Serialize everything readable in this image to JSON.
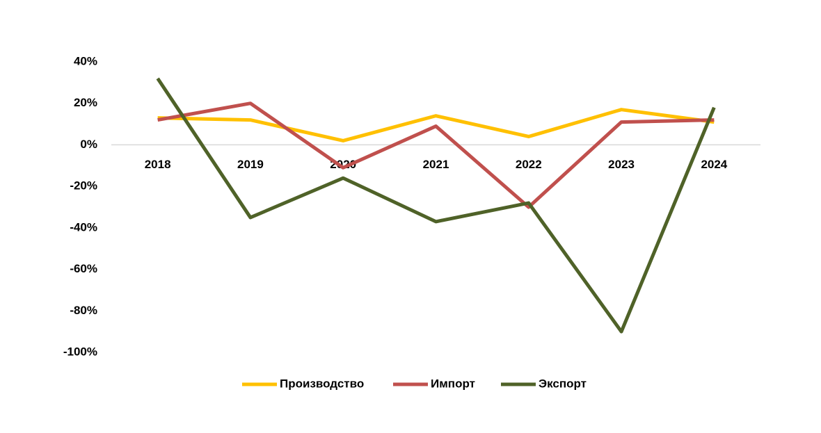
{
  "chart_data": {
    "type": "line",
    "categories": [
      "2018",
      "2019",
      "2020",
      "2021",
      "2022",
      "2023",
      "2024"
    ],
    "series": [
      {
        "name": "Производство",
        "color": "#FFC000",
        "values": [
          13,
          12,
          2,
          14,
          4,
          17,
          11
        ]
      },
      {
        "name": "Импорт",
        "color": "#C0504D",
        "values": [
          12,
          20,
          -11,
          9,
          -30,
          11,
          12
        ]
      },
      {
        "name": "Экспорт",
        "color": "#4F6228",
        "values": [
          32,
          -35,
          -16,
          -37,
          -28,
          -90,
          18
        ]
      }
    ],
    "ylim": [
      -100,
      40
    ],
    "yticks": [
      {
        "value": 40,
        "label": "40%"
      },
      {
        "value": 20,
        "label": "20%"
      },
      {
        "value": 0,
        "label": "0%"
      },
      {
        "value": -20,
        "label": "-20%"
      },
      {
        "value": -40,
        "label": "-40%"
      },
      {
        "value": -60,
        "label": "-60%"
      },
      {
        "value": -80,
        "label": "-80%"
      },
      {
        "value": -100,
        "label": "-100%"
      }
    ],
    "legend": "bottom"
  }
}
